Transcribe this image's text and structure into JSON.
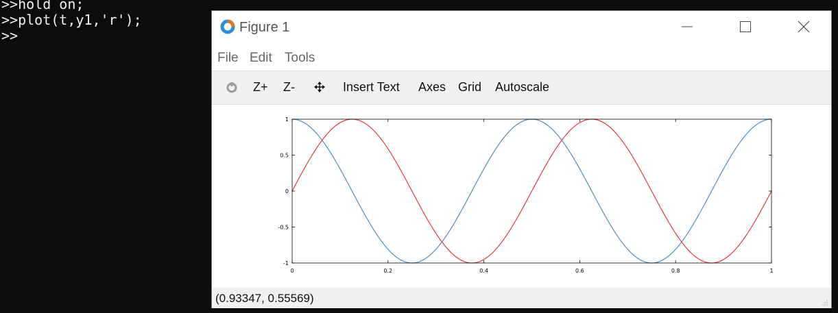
{
  "console": {
    "lines": [
      ">>hold on;",
      ">>plot(t,y1,'r');",
      ">>"
    ]
  },
  "window": {
    "title": "Figure 1",
    "logo_icon": "octave-logo-icon"
  },
  "menu": [
    "File",
    "Edit",
    "Tools"
  ],
  "toolbar": {
    "rotate_icon": "rotate-icon",
    "zoom_in": "Z+",
    "zoom_out": "Z-",
    "pan_icon": "pan-arrows-icon",
    "insert_text": "Insert Text",
    "axes": "Axes",
    "grid": "Grid",
    "autoscale": "Autoscale"
  },
  "status": "(0.93347, 0.55569)",
  "colors": {
    "blue_series": "#4a8fc7",
    "red_series": "#e8373a"
  },
  "chart_data": {
    "type": "line",
    "xlim": [
      0,
      1
    ],
    "ylim": [
      -1,
      1
    ],
    "xticks": [
      0,
      0.2,
      0.4,
      0.6,
      0.8,
      1
    ],
    "xtick_labels": [
      "0",
      "0.2",
      "0.4",
      "0.6",
      "0.8",
      "1"
    ],
    "yticks": [
      1,
      0.5,
      0,
      -0.5,
      -1
    ],
    "ytick_labels": [
      "1",
      "0.5",
      "0",
      "-0.5",
      "-1"
    ],
    "grid": false,
    "series": [
      {
        "color": "#4a8fc7",
        "function": "cos(4*pi*t)",
        "x": [
          0,
          0.05,
          0.1,
          0.15,
          0.2,
          0.25,
          0.3,
          0.35,
          0.4,
          0.45,
          0.5,
          0.55,
          0.6,
          0.65,
          0.7,
          0.75,
          0.8,
          0.85,
          0.9,
          0.95,
          1
        ],
        "y": [
          1,
          0.81,
          0.31,
          -0.31,
          -0.81,
          -1,
          -0.81,
          -0.31,
          0.31,
          0.81,
          1,
          0.81,
          0.31,
          -0.31,
          -0.81,
          -1,
          -0.81,
          -0.31,
          0.31,
          0.81,
          1
        ]
      },
      {
        "color": "#e8373a",
        "function": "sin(4*pi*t)",
        "x": [
          0,
          0.05,
          0.1,
          0.15,
          0.2,
          0.25,
          0.3,
          0.35,
          0.4,
          0.45,
          0.5,
          0.55,
          0.6,
          0.65,
          0.7,
          0.75,
          0.8,
          0.85,
          0.9,
          0.95,
          1
        ],
        "y": [
          0,
          0.59,
          0.95,
          0.95,
          0.59,
          0,
          -0.59,
          -0.95,
          -0.95,
          -0.59,
          0,
          0.59,
          0.95,
          0.95,
          0.59,
          0,
          -0.59,
          -0.95,
          -0.95,
          -0.59,
          0
        ]
      }
    ]
  }
}
